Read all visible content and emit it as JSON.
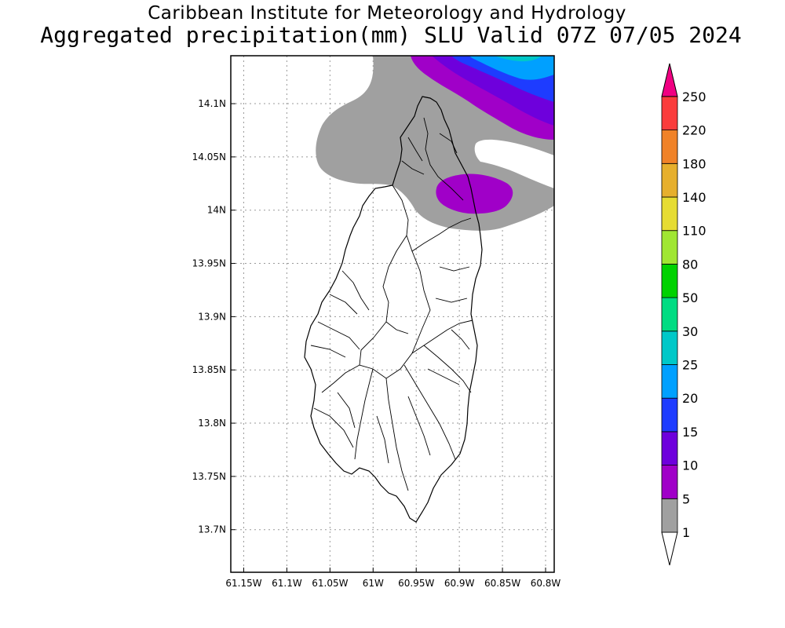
{
  "header": {
    "title": "Caribbean Institute for Meteorology and Hydrology",
    "subtitle": "Aggregated precipitation(mm) SLU Valid 07Z 07/05 2024"
  },
  "map": {
    "region": "Saint Lucia",
    "lat_range": [
      13.66,
      14.145
    ],
    "lon_range": [
      -61.165,
      -60.79
    ],
    "lat_ticks": [
      "14.1N",
      "14.05N",
      "14N",
      "13.95N",
      "13.9N",
      "13.85N",
      "13.8N",
      "13.75N",
      "13.7N"
    ],
    "lon_ticks": [
      "61.15W",
      "61.1W",
      "61.05W",
      "61W",
      "60.95W",
      "60.9W",
      "60.85W",
      "60.8W"
    ]
  },
  "colorbar": {
    "levels": [
      "1",
      "5",
      "10",
      "15",
      "20",
      "25",
      "30",
      "50",
      "80",
      "110",
      "140",
      "180",
      "220",
      "250"
    ],
    "colors": [
      "#a0a0a0",
      "#a000c8",
      "#6e00dc",
      "#1e3cff",
      "#00a0ff",
      "#00c8c8",
      "#00dc82",
      "#00d200",
      "#a0e632",
      "#e6dc32",
      "#e6af2d",
      "#f08228",
      "#fa3c3c",
      "#f00082"
    ]
  }
}
